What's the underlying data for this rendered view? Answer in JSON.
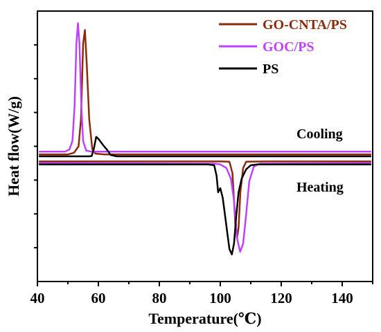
{
  "chart_data": {
    "type": "line",
    "xlabel": "Temperature(℃)",
    "ylabel": "Heat flow(W/g)",
    "xlim": [
      40,
      150
    ],
    "xticks": [
      40,
      60,
      80,
      100,
      120,
      140
    ],
    "y_units": "arbitrary (relative, 0 = bottom, 100 = top of plot)",
    "ylim": [
      0,
      100
    ],
    "grid": false,
    "legend_position": "top-right",
    "annotations": [
      "Cooling",
      "Heating"
    ],
    "series": [
      {
        "name": "GO-CNTA/PS",
        "color": "#8B2A0A",
        "segments": [
          {
            "label": "cooling",
            "points": [
              [
                40.5,
                47.0
              ],
              [
                50,
                47.0
              ],
              [
                52,
                47.6
              ],
              [
                53.5,
                50.0
              ],
              [
                54.3,
                60.0
              ],
              [
                55.0,
                88.0
              ],
              [
                55.6,
                93.0
              ],
              [
                56.2,
                80.0
              ],
              [
                57.0,
                60.0
              ],
              [
                58.0,
                49.0
              ],
              [
                59.0,
                47.3
              ],
              [
                62,
                47.0
              ],
              [
                100,
                47.0
              ],
              [
                149.5,
                47.0
              ]
            ]
          },
          {
            "label": "heating",
            "points": [
              [
                40.5,
                44.4
              ],
              [
                100,
                44.4
              ],
              [
                103,
                44.3
              ],
              [
                104,
                40.0
              ],
              [
                104.5,
                30.0
              ],
              [
                105.0,
                20.0
              ],
              [
                105.5,
                16.0
              ],
              [
                106.0,
                20.0
              ],
              [
                106.6,
                33.0
              ],
              [
                107.5,
                42.0
              ],
              [
                108.5,
                44.3
              ],
              [
                115,
                44.4
              ],
              [
                149.5,
                44.4
              ]
            ]
          }
        ]
      },
      {
        "name": "GOC/PS",
        "color": "#C040FF",
        "segments": [
          {
            "label": "cooling",
            "points": [
              [
                40.5,
                48.0
              ],
              [
                49,
                48.0
              ],
              [
                50.5,
                48.8
              ],
              [
                51.5,
                52.0
              ],
              [
                52.2,
                65.0
              ],
              [
                52.8,
                88.0
              ],
              [
                53.3,
                95.5
              ],
              [
                53.8,
                88.0
              ],
              [
                54.4,
                65.0
              ],
              [
                55.0,
                52.0
              ],
              [
                56.0,
                48.4
              ],
              [
                58,
                48.0
              ],
              [
                149.5,
                48.0
              ]
            ]
          },
          {
            "label": "heating",
            "points": [
              [
                40.5,
                43.8
              ],
              [
                98,
                43.6
              ],
              [
                100,
                43.3
              ],
              [
                102,
                42.0
              ],
              [
                103.5,
                38.0
              ],
              [
                104.5,
                30.0
              ],
              [
                105.5,
                16.0
              ],
              [
                106.5,
                11.0
              ],
              [
                107.5,
                14.0
              ],
              [
                108.5,
                25.0
              ],
              [
                109.5,
                37.0
              ],
              [
                111,
                42.5
              ],
              [
                113,
                43.6
              ],
              [
                149.5,
                43.8
              ]
            ]
          }
        ]
      },
      {
        "name": "PS",
        "color": "#000000",
        "segments": [
          {
            "label": "cooling",
            "points": [
              [
                40.5,
                46.3
              ],
              [
                57,
                46.3
              ],
              [
                57.8,
                46.4
              ],
              [
                58.5,
                49.0
              ],
              [
                59.3,
                53.5
              ],
              [
                60.2,
                52.5
              ],
              [
                61.5,
                50.5
              ],
              [
                63.0,
                48.5
              ],
              [
                64.0,
                46.8
              ],
              [
                66,
                46.3
              ],
              [
                149.5,
                46.3
              ]
            ]
          },
          {
            "label": "heating",
            "points": [
              [
                40.5,
                43.3
              ],
              [
                96,
                43.3
              ],
              [
                98.0,
                43.0
              ],
              [
                98.8,
                39.0
              ],
              [
                99.3,
                33.0
              ],
              [
                100.0,
                34.5
              ],
              [
                100.8,
                31.0
              ],
              [
                101.5,
                25.0
              ],
              [
                102.3,
                18.0
              ],
              [
                103.0,
                12.0
              ],
              [
                103.8,
                10.0
              ],
              [
                104.5,
                14.0
              ],
              [
                105.3,
                25.0
              ],
              [
                106.0,
                33.0
              ],
              [
                107.0,
                38.0
              ],
              [
                108.5,
                41.5
              ],
              [
                110,
                43.0
              ],
              [
                112,
                43.3
              ],
              [
                149.5,
                43.3
              ]
            ]
          }
        ]
      }
    ]
  }
}
